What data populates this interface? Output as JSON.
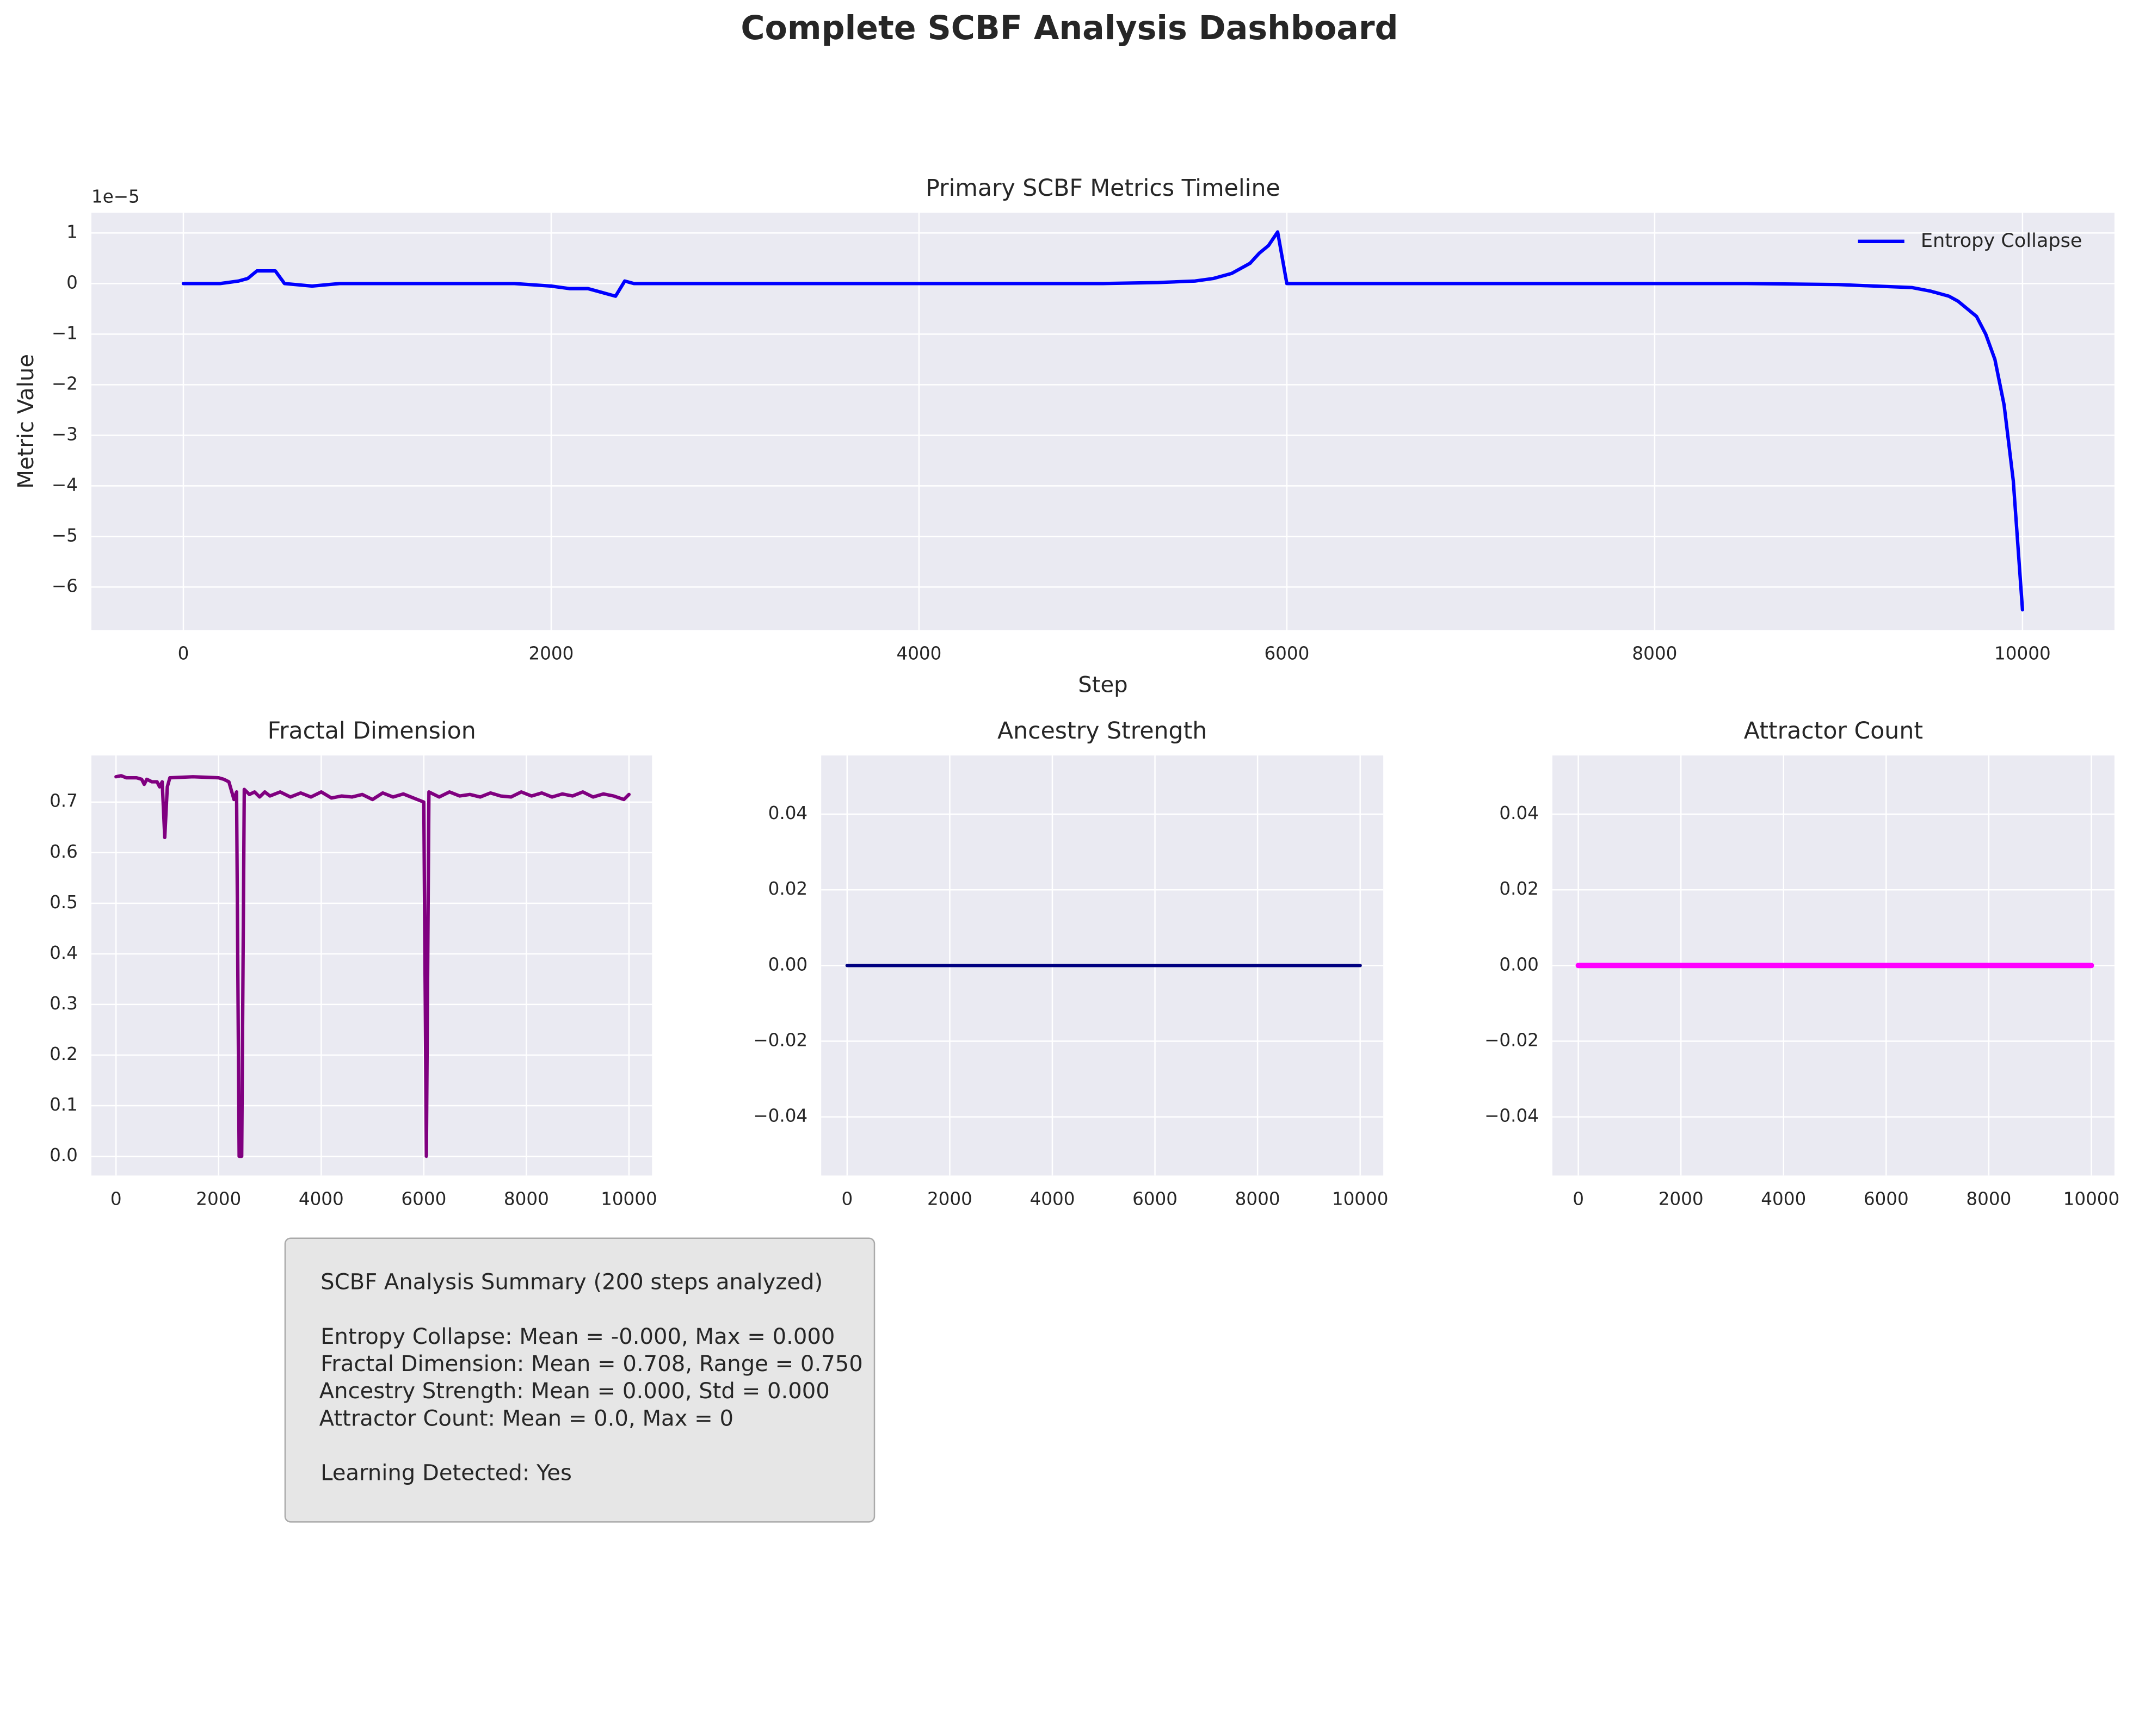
{
  "title": "Complete SCBF Analysis Dashboard",
  "chart_data": [
    {
      "type": "line",
      "title": "Primary SCBF Metrics Timeline",
      "xlabel": "Step",
      "ylabel": "Metric Value",
      "y_offset_label": "1e−5",
      "x": [
        0,
        200,
        300,
        350,
        400,
        500,
        550,
        700,
        850,
        1800,
        2000,
        2100,
        2200,
        2250,
        2350,
        2400,
        2450,
        5000,
        5300,
        5500,
        5600,
        5700,
        5800,
        5850,
        5900,
        5950,
        6000,
        8500,
        9000,
        9200,
        9400,
        9500,
        9600,
        9650,
        9700,
        9750,
        9800,
        9850,
        9900,
        9950,
        10000
      ],
      "series": [
        {
          "name": "Entropy Collapse",
          "color": "#0000ff",
          "linewidth": 2.5,
          "values": [
            0,
            0,
            0.05,
            0.1,
            0.25,
            0.25,
            0,
            -0.05,
            0,
            0,
            -0.05,
            -0.1,
            -0.1,
            -0.15,
            -0.25,
            0.05,
            0,
            0,
            0.02,
            0.05,
            0.1,
            0.2,
            0.4,
            0.6,
            0.75,
            1.02,
            0,
            0,
            -0.02,
            -0.05,
            -0.08,
            -0.15,
            -0.25,
            -0.35,
            -0.5,
            -0.65,
            -1.0,
            -1.5,
            -2.4,
            -3.9,
            -6.45
          ]
        }
      ],
      "xlim": [
        -500,
        10500
      ],
      "ylim": [
        -6.85,
        1.4
      ],
      "xticks": [
        0,
        2000,
        4000,
        6000,
        8000,
        10000
      ],
      "yticks": [
        {
          "value": -6,
          "label": "−6"
        },
        {
          "value": -5,
          "label": "−5"
        },
        {
          "value": -4,
          "label": "−4"
        },
        {
          "value": -3,
          "label": "−3"
        },
        {
          "value": -2,
          "label": "−2"
        },
        {
          "value": -1,
          "label": "−1"
        },
        0,
        1
      ],
      "grid": true,
      "legend": "upper right"
    },
    {
      "type": "line",
      "title": "Fractal Dimension",
      "x": [
        0,
        100,
        200,
        400,
        500,
        550,
        600,
        700,
        800,
        850,
        900,
        950,
        1000,
        1050,
        1500,
        2000,
        2100,
        2200,
        2300,
        2350,
        2400,
        2450,
        2500,
        2600,
        2700,
        2800,
        2900,
        3000,
        3200,
        3400,
        3600,
        3800,
        4000,
        4200,
        4400,
        4600,
        4800,
        5000,
        5200,
        5400,
        5600,
        5800,
        6000,
        6050,
        6100,
        6300,
        6500,
        6700,
        6900,
        7100,
        7300,
        7500,
        7700,
        7900,
        8100,
        8300,
        8500,
        8700,
        8900,
        9100,
        9300,
        9500,
        9700,
        9900,
        10000
      ],
      "series": [
        {
          "color": "#800080",
          "linewidth": 2.5,
          "values": [
            0.75,
            0.752,
            0.748,
            0.748,
            0.745,
            0.735,
            0.745,
            0.74,
            0.74,
            0.73,
            0.74,
            0.63,
            0.73,
            0.748,
            0.75,
            0.748,
            0.745,
            0.74,
            0.705,
            0.72,
            0,
            0,
            0.725,
            0.715,
            0.72,
            0.71,
            0.72,
            0.712,
            0.72,
            0.71,
            0.718,
            0.71,
            0.72,
            0.708,
            0.712,
            0.71,
            0.715,
            0.705,
            0.718,
            0.71,
            0.716,
            0.708,
            0.7,
            0,
            0.72,
            0.71,
            0.72,
            0.712,
            0.715,
            0.71,
            0.718,
            0.712,
            0.71,
            0.72,
            0.712,
            0.718,
            0.71,
            0.716,
            0.712,
            0.72,
            0.71,
            0.716,
            0.712,
            0.705,
            0.715
          ]
        }
      ],
      "xlim": [
        -480,
        10450
      ],
      "ylim": [
        -0.038,
        0.792
      ],
      "xticks": [
        0,
        2000,
        4000,
        6000,
        8000,
        10000
      ],
      "yticks": [
        {
          "value": 0,
          "label": "0.0"
        },
        0.1,
        0.2,
        0.3,
        0.4,
        0.5,
        0.6,
        0.7
      ],
      "grid": true
    },
    {
      "type": "line",
      "title": "Ancestry Strength",
      "x": [
        0,
        10000
      ],
      "series": [
        {
          "color": "#000080",
          "linewidth": 2.5,
          "values": [
            0,
            0
          ]
        }
      ],
      "xlim": [
        -505,
        10450
      ],
      "ylim": [
        -0.0555,
        0.0555
      ],
      "xticks": [
        0,
        2000,
        4000,
        6000,
        8000,
        10000
      ],
      "yticks": [
        {
          "value": -0.04,
          "label": "−0.04"
        },
        {
          "value": -0.02,
          "label": "−0.02"
        },
        {
          "value": 0,
          "label": "0.00"
        },
        0.02,
        0.04
      ],
      "grid": true
    },
    {
      "type": "line",
      "title": "Attractor Count",
      "x": [
        0,
        10000
      ],
      "series": [
        {
          "color": "#ff00ff",
          "linewidth": 4,
          "values": [
            0,
            0
          ]
        }
      ],
      "xlim": [
        -505,
        10450
      ],
      "ylim": [
        -0.0555,
        0.0555
      ],
      "xticks": [
        0,
        2000,
        4000,
        6000,
        8000,
        10000
      ],
      "yticks": [
        {
          "value": -0.04,
          "label": "−0.04"
        },
        {
          "value": -0.02,
          "label": "−0.02"
        },
        {
          "value": 0,
          "label": "0.00"
        },
        0.02,
        0.04
      ],
      "grid": true
    }
  ],
  "summary": {
    "lines": [
      "SCBF Analysis Summary (200 steps analyzed)",
      "Entropy Collapse: Mean = -0.000, Max = 0.000",
      "Fractal Dimension: Mean = 0.708, Range = 0.750",
      "Ancestry Strength: Mean = 0.000, Std = 0.000",
      "Attractor Count: Mean = 0.0, Max = 0",
      "Learning Detected: Yes"
    ]
  }
}
